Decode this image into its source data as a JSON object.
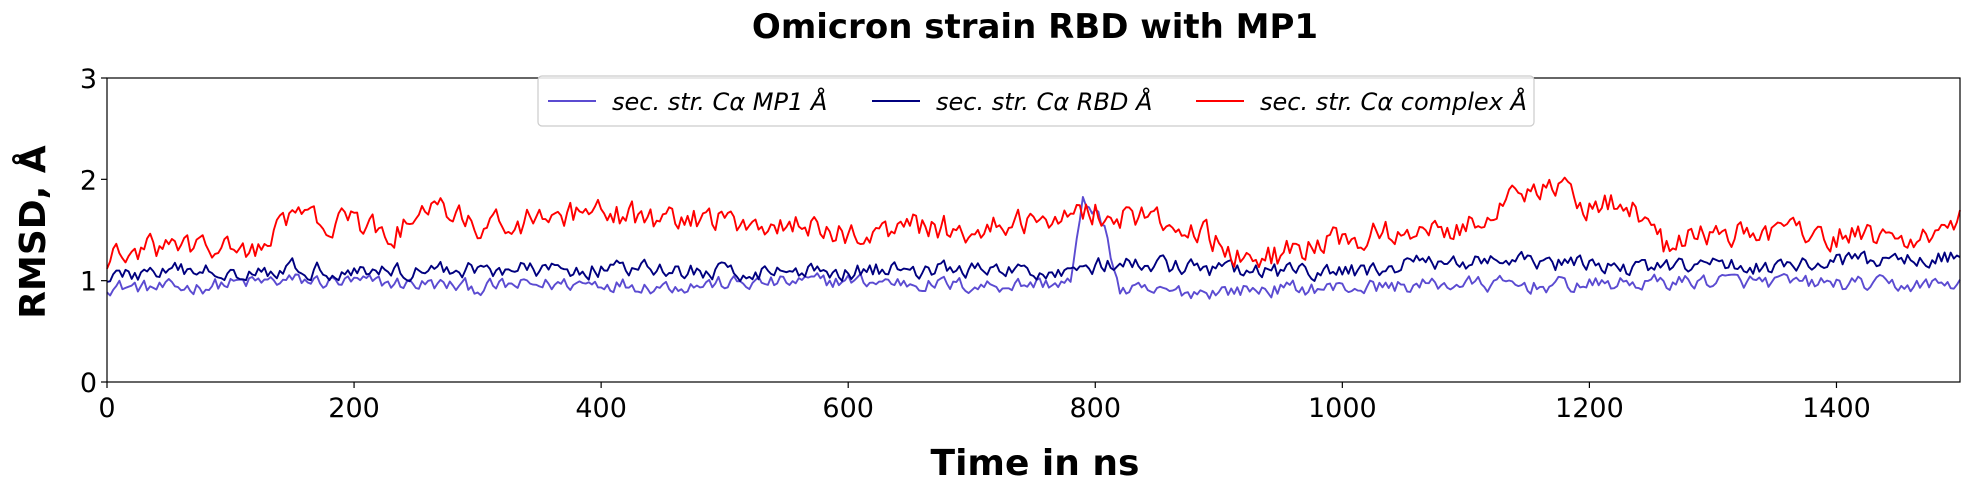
{
  "chart_data": {
    "type": "line",
    "title": "Omicron strain RBD with MP1",
    "xlabel": "Time in ns",
    "ylabel": "RMSD, Å",
    "xlim": [
      0,
      1500
    ],
    "ylim": [
      0,
      3
    ],
    "xticks": [
      0,
      200,
      400,
      600,
      800,
      1000,
      1200,
      1400
    ],
    "yticks": [
      0,
      1,
      2,
      3
    ],
    "grid": false,
    "legend_position": "top-center",
    "sample_step_ns": 2.5,
    "series": [
      {
        "name": "sec. str. Cα MP1 Å",
        "color": "#5b4bd1",
        "x_points": [
          0,
          50,
          100,
          150,
          200,
          250,
          300,
          350,
          400,
          450,
          500,
          550,
          600,
          650,
          700,
          750,
          780,
          790,
          800,
          810,
          820,
          850,
          900,
          950,
          1000,
          1050,
          1100,
          1150,
          1200,
          1250,
          1300,
          1350,
          1400,
          1450,
          1500
        ],
        "y_points": [
          0.95,
          0.92,
          0.97,
          1.0,
          0.98,
          0.97,
          0.93,
          0.96,
          0.98,
          0.95,
          0.97,
          0.98,
          1.0,
          0.98,
          0.95,
          0.97,
          0.98,
          1.75,
          1.72,
          1.4,
          0.9,
          0.88,
          0.9,
          0.92,
          0.93,
          0.95,
          0.97,
          0.95,
          0.96,
          0.98,
          1.0,
          0.98,
          0.97,
          0.95,
          0.97
        ],
        "noise_amplitude": 0.09
      },
      {
        "name": "sec. str. Cα RBD Å",
        "color": "#00007f",
        "x_points": [
          0,
          50,
          100,
          150,
          200,
          250,
          300,
          350,
          400,
          450,
          500,
          550,
          600,
          650,
          700,
          750,
          800,
          850,
          900,
          950,
          1000,
          1050,
          1100,
          1150,
          1200,
          1250,
          1300,
          1350,
          1400,
          1450,
          1500
        ],
        "y_points": [
          1.05,
          1.08,
          1.1,
          1.12,
          1.1,
          1.1,
          1.12,
          1.1,
          1.12,
          1.1,
          1.08,
          1.1,
          1.1,
          1.12,
          1.1,
          1.08,
          1.15,
          1.15,
          1.1,
          1.08,
          1.08,
          1.15,
          1.2,
          1.18,
          1.15,
          1.12,
          1.15,
          1.15,
          1.18,
          1.2,
          1.25
        ],
        "noise_amplitude": 0.1
      },
      {
        "name": "sec. str. Cα complex Å",
        "color": "#ff0000",
        "x_points": [
          0,
          50,
          100,
          130,
          150,
          200,
          230,
          260,
          300,
          350,
          400,
          450,
          500,
          550,
          600,
          650,
          700,
          750,
          800,
          850,
          900,
          920,
          950,
          1000,
          1050,
          1100,
          1140,
          1160,
          1200,
          1230,
          1260,
          1300,
          1350,
          1400,
          1450,
          1500
        ],
        "y_points": [
          1.2,
          1.35,
          1.3,
          1.35,
          1.65,
          1.55,
          1.45,
          1.7,
          1.55,
          1.6,
          1.65,
          1.6,
          1.6,
          1.55,
          1.45,
          1.55,
          1.5,
          1.6,
          1.7,
          1.6,
          1.4,
          1.2,
          1.25,
          1.4,
          1.5,
          1.55,
          1.85,
          1.95,
          1.75,
          1.8,
          1.35,
          1.45,
          1.5,
          1.45,
          1.4,
          1.6
        ],
        "noise_amplitude": 0.16
      }
    ]
  }
}
